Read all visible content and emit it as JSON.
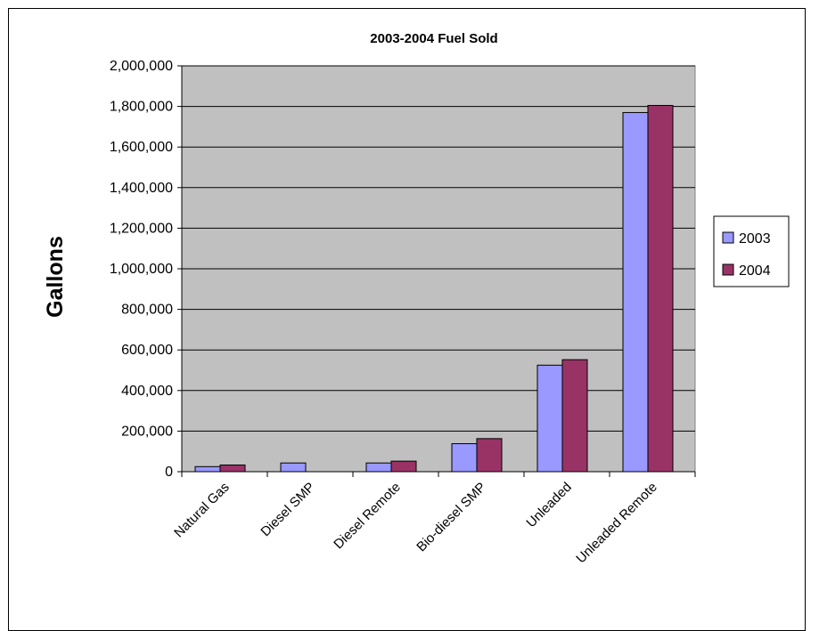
{
  "chart_data": {
    "type": "bar",
    "title": "2003-2004 Fuel Sold",
    "xlabel": "",
    "ylabel": "Gallons",
    "ylim": [
      0,
      2000000
    ],
    "yticks": [
      0,
      200000,
      400000,
      600000,
      800000,
      1000000,
      1200000,
      1400000,
      1600000,
      1800000,
      2000000
    ],
    "ytick_labels": [
      "0",
      "200,000",
      "400,000",
      "600,000",
      "800,000",
      "1,000,000",
      "1,200,000",
      "1,400,000",
      "1,600,000",
      "1,800,000",
      "2,000,000"
    ],
    "grid": true,
    "legend_position": "right",
    "categories": [
      "Natural Gas",
      "Diesel SMP",
      "Diesel Remote",
      "Bio-diesel SMP",
      "Unleaded",
      "Unleaded Remote"
    ],
    "series": [
      {
        "name": "2003",
        "color": "#9999ff",
        "values": [
          25000,
          43000,
          43000,
          138000,
          525000,
          1770000
        ]
      },
      {
        "name": "2004",
        "color": "#993366",
        "values": [
          33000,
          0,
          52000,
          163000,
          552000,
          1805000
        ]
      }
    ],
    "plot_background": "#c0c0c0"
  }
}
